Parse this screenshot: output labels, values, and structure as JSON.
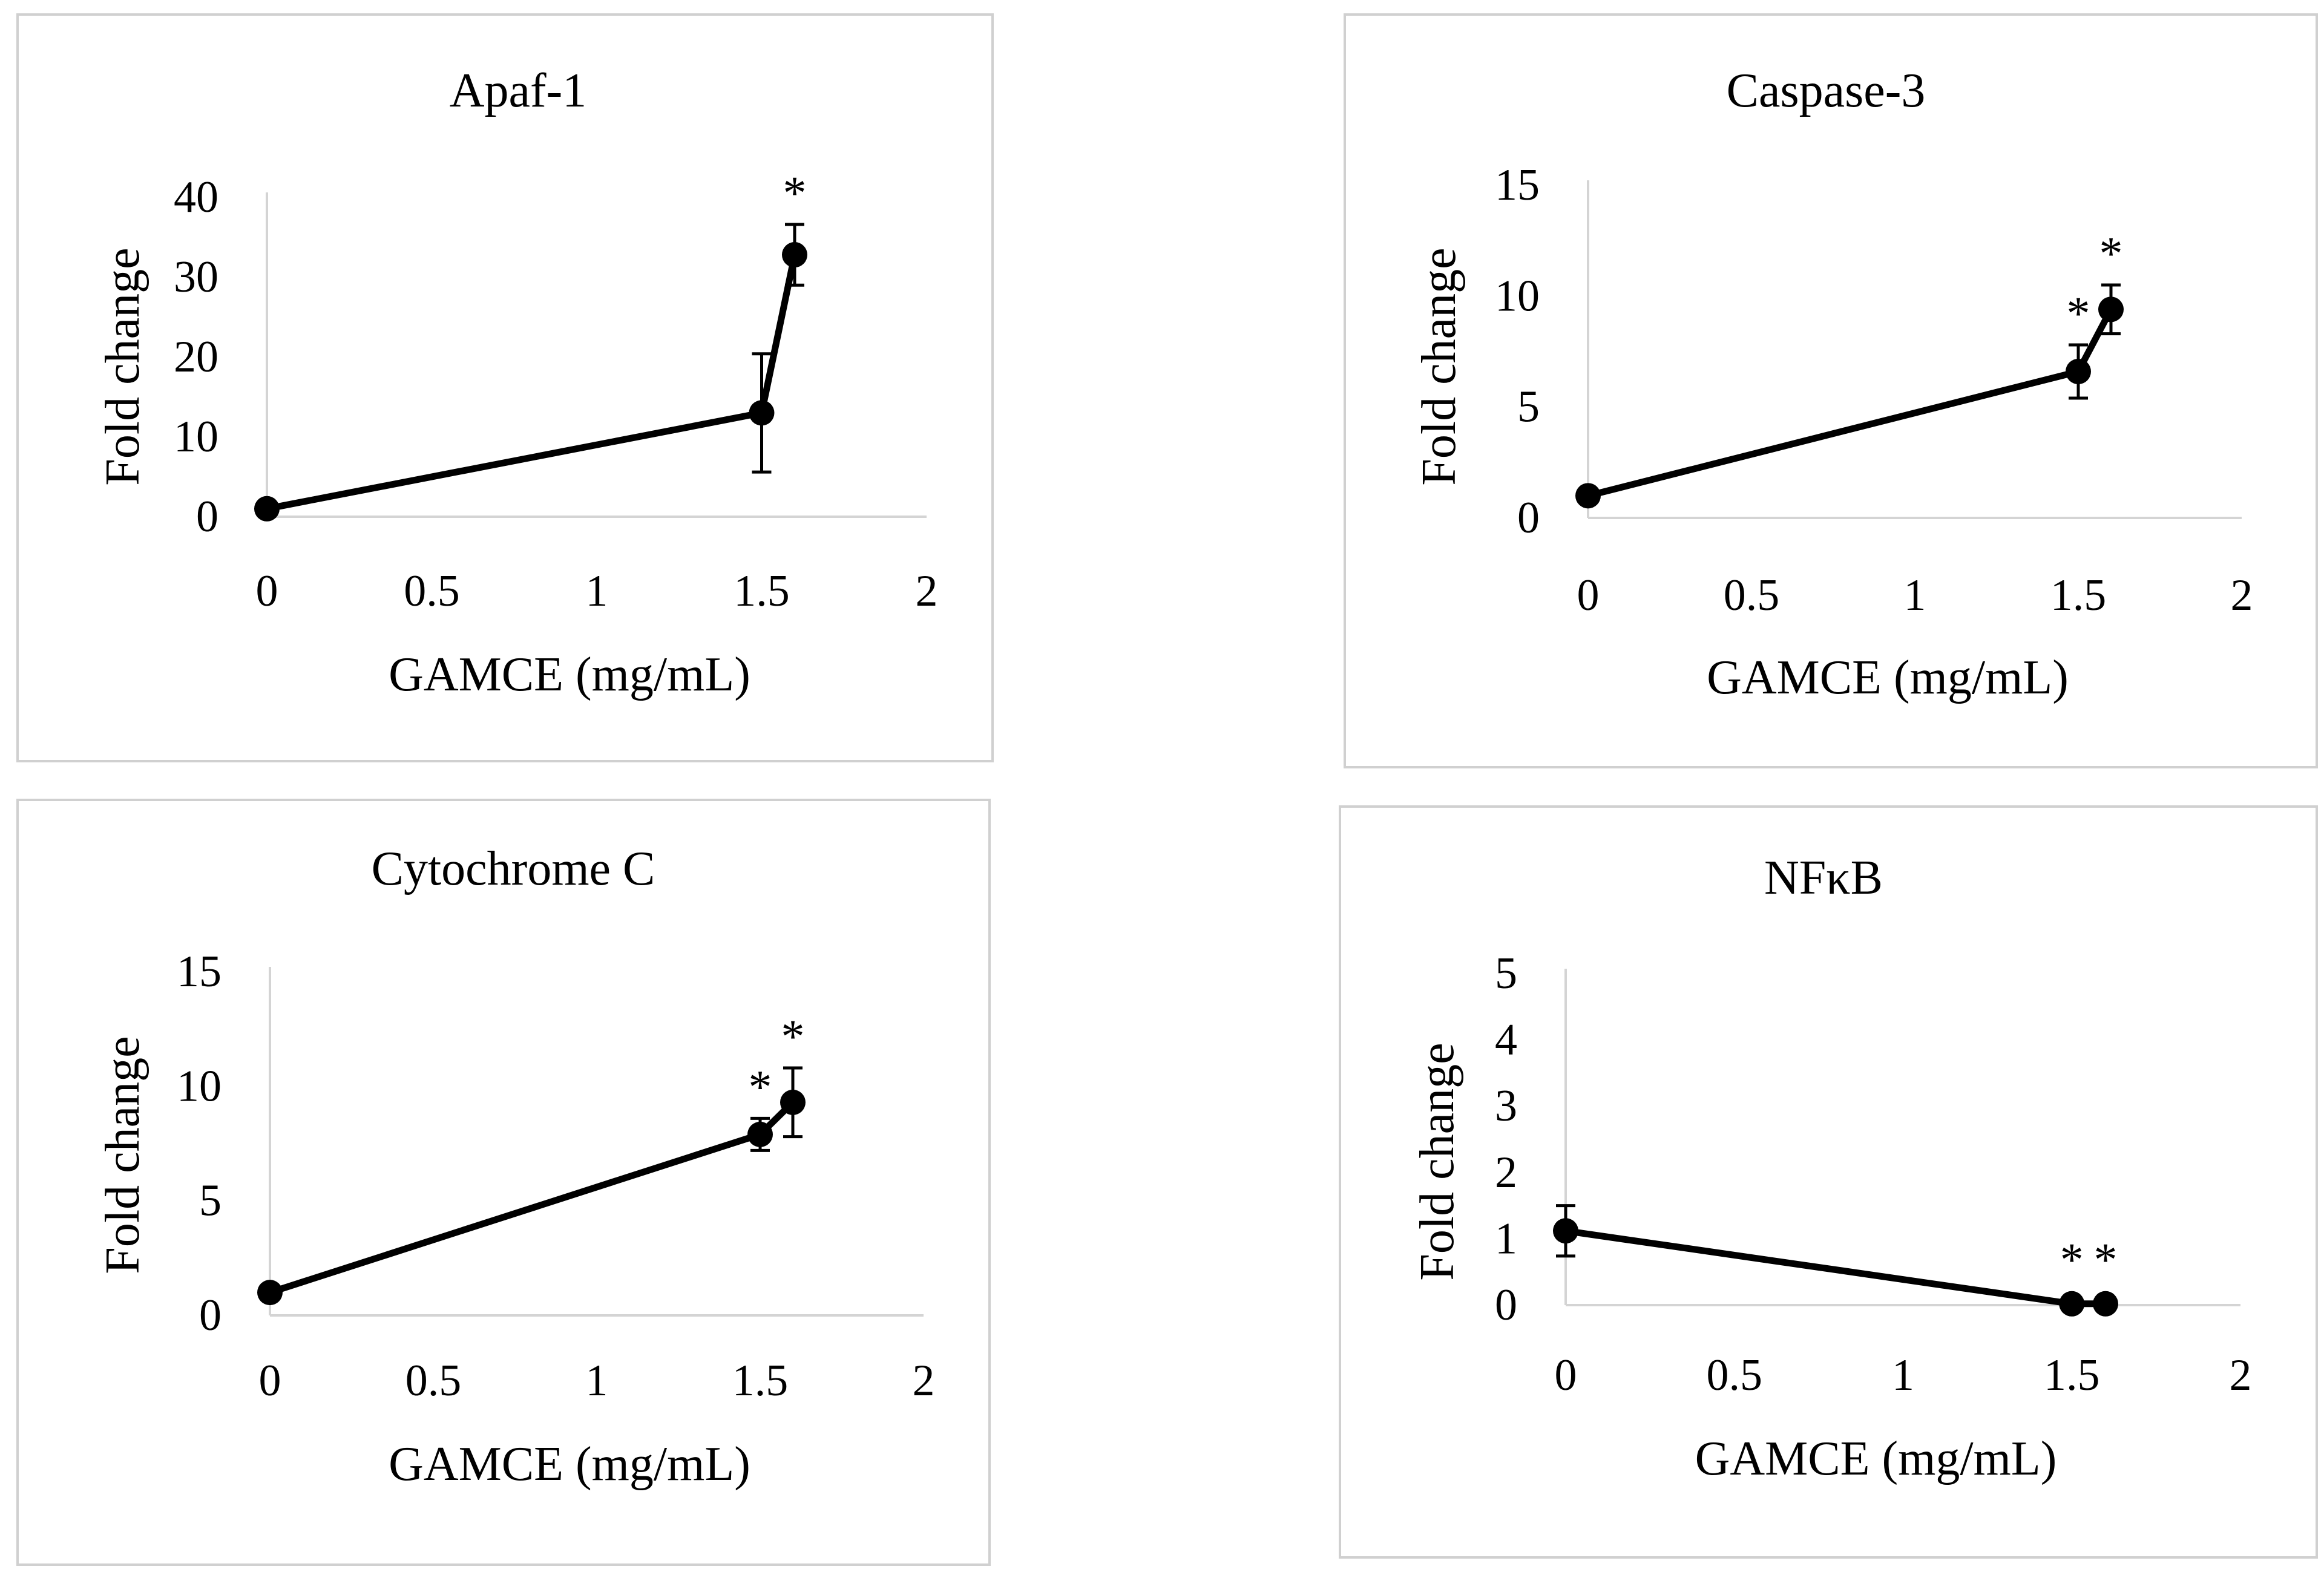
{
  "chart_data": [
    {
      "type": "line",
      "title": "Apaf-1",
      "xlabel": "GAMCE (mg/mL)",
      "ylabel": "Fold change",
      "xlim": [
        0,
        2
      ],
      "ylim": [
        0,
        40
      ],
      "xticks": [
        "0",
        "0.5",
        "1",
        "1.5",
        "2"
      ],
      "yticks": [
        "0",
        "10",
        "20",
        "30",
        "40"
      ],
      "x": [
        0,
        1.5,
        1.6
      ],
      "y": [
        1,
        13,
        32.8
      ],
      "err_low": [
        0,
        7.4,
        3.8
      ],
      "err_high": [
        0,
        7.4,
        3.8
      ],
      "significance": [
        "",
        "",
        "*"
      ]
    },
    {
      "type": "line",
      "title": "Caspase-3",
      "xlabel": "GAMCE (mg/mL)",
      "ylabel": "Fold change",
      "xlim": [
        0,
        2
      ],
      "ylim": [
        0,
        15
      ],
      "xticks": [
        "0",
        "0.5",
        "1",
        "1.5",
        "2"
      ],
      "yticks": [
        "0",
        "5",
        "10",
        "15"
      ],
      "x": [
        0,
        1.5,
        1.6
      ],
      "y": [
        1,
        6.6,
        9.4
      ],
      "err_low": [
        0,
        1.2,
        1.1
      ],
      "err_high": [
        0,
        1.2,
        1.1
      ],
      "significance": [
        "",
        "*",
        "*"
      ]
    },
    {
      "type": "line",
      "title": "Cytochrome C",
      "xlabel": "GAMCE (mg/mL)",
      "ylabel": "Fold change",
      "xlim": [
        0,
        2
      ],
      "ylim": [
        0,
        15
      ],
      "xticks": [
        "0",
        "0.5",
        "1",
        "1.5",
        "2"
      ],
      "yticks": [
        "0",
        "5",
        "10",
        "15"
      ],
      "x": [
        0,
        1.5,
        1.6
      ],
      "y": [
        1,
        7.9,
        9.3
      ],
      "err_low": [
        0,
        0.7,
        1.5
      ],
      "err_high": [
        0,
        0.7,
        1.5
      ],
      "significance": [
        "",
        "*",
        "*"
      ]
    },
    {
      "type": "line",
      "title": "NFκB",
      "xlabel": "GAMCE (mg/mL)",
      "ylabel": "Fold change",
      "xlim": [
        0,
        2
      ],
      "ylim": [
        0,
        5
      ],
      "xticks": [
        "0",
        "0.5",
        "1",
        "1.5",
        "2"
      ],
      "yticks": [
        "0",
        "1",
        "2",
        "3",
        "4",
        "5"
      ],
      "x": [
        0,
        1.5,
        1.6
      ],
      "y": [
        1.12,
        0.02,
        0.02
      ],
      "err_low": [
        0.38,
        0,
        0
      ],
      "err_high": [
        0.38,
        0,
        0
      ],
      "significance": [
        "",
        "*",
        "*"
      ]
    }
  ]
}
